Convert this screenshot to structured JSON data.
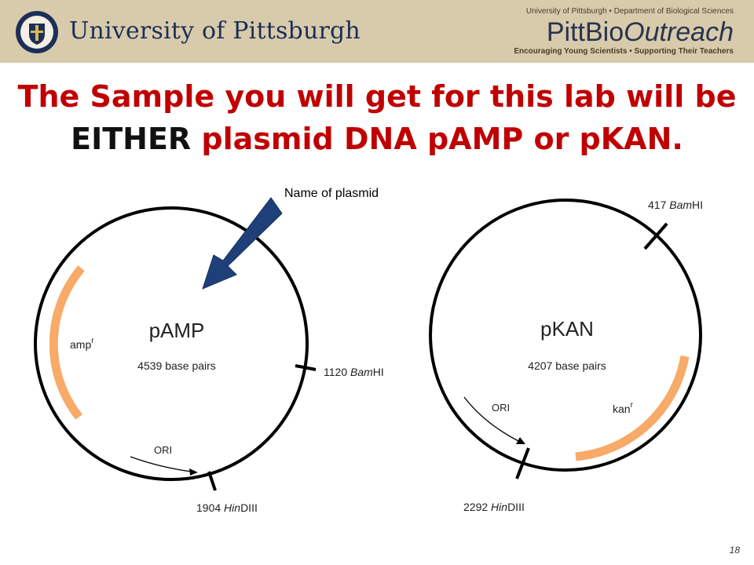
{
  "header": {
    "university_name": "University of Pittsburgh",
    "dept_line": "University of Pittsburgh  •  Department of Biological Sciences",
    "brand_part1": "PittBio",
    "brand_part2": "Outreach",
    "tagline": "Encouraging Young Scientists  •  Supporting Their Teachers"
  },
  "title": {
    "line1": "The Sample you will get for this lab will be",
    "line2_black": "EITHER",
    "line2_red": " plasmid DNA pAMP or pKAN."
  },
  "annotation": {
    "label": "Name of plasmid"
  },
  "colors": {
    "title_red": "#c00000",
    "gene_orange": "#f8aa68",
    "arrow_blue": "#1f3f79",
    "header_tan": "#d8cbab"
  },
  "plasmids": [
    {
      "name": "pAMP",
      "size": "4539 base pairs",
      "gene": "amp",
      "gene_sup": "r",
      "ori": "ORI",
      "site1_pos": "1120",
      "site1_enzyme": "BamHI",
      "site2_pos": "1904",
      "site2_enzyme": "HinDIII"
    },
    {
      "name": "pKAN",
      "size": "4207 base pairs",
      "gene": "kan",
      "gene_sup": "r",
      "ori": "ORI",
      "site1_pos": "417",
      "site1_enzyme": "BamHI",
      "site2_pos": "2292",
      "site2_enzyme": "HinDIII"
    }
  ],
  "page_number": "18"
}
